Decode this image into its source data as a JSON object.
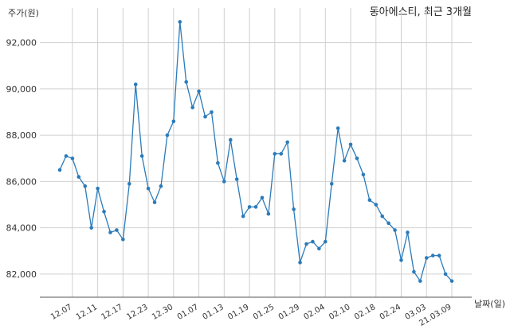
{
  "chart_data": {
    "type": "line",
    "title": "동아에스티, 최근 3개월",
    "ylabel": "주가(원)",
    "xlabel": "날짜(일)",
    "ylim": [
      81000,
      93500
    ],
    "yticks": [
      82000,
      84000,
      86000,
      88000,
      90000,
      92000
    ],
    "ytick_labels": [
      "82,000",
      "84,000",
      "86,000",
      "88,000",
      "90,000",
      "92,000"
    ],
    "xtick_labels": [
      "12.07",
      "12.11",
      "12.17",
      "12.23",
      "12.30",
      "01.07",
      "01.13",
      "01.19",
      "01.25",
      "01.29",
      "02.04",
      "02.10",
      "02.18",
      "02.24",
      "03.03",
      "21.03.09"
    ],
    "xtick_index": [
      2,
      6,
      10,
      14,
      18,
      22,
      26,
      30,
      34,
      38,
      42,
      46,
      50,
      54,
      58,
      62
    ],
    "grid": true,
    "color": "#2b7bba",
    "series": [
      {
        "values": [
          86500,
          87100,
          87000,
          86200,
          85800,
          84000,
          85700,
          84700,
          83800,
          83900,
          83500,
          85900,
          90200,
          87100,
          85700,
          85100,
          85800,
          88000,
          88600,
          92900,
          90300,
          89200,
          89900,
          88800,
          89000,
          86800,
          86000,
          87800,
          86100,
          84500,
          84900,
          84900,
          85300,
          84600,
          87200,
          87200,
          87700,
          84800,
          82500,
          83300,
          83400,
          83100,
          83400,
          85900,
          88300,
          86900,
          87600,
          87000,
          86300,
          85200,
          85000,
          84500,
          84200,
          83900,
          82600,
          83800,
          82100,
          81700,
          82700,
          82800,
          82800,
          82000,
          81700
        ]
      }
    ]
  }
}
